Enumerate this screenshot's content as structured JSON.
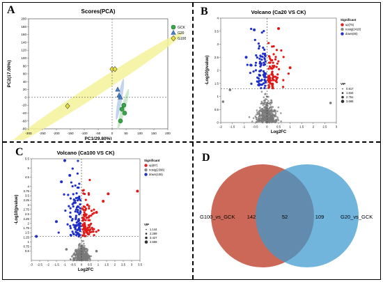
{
  "panels": {
    "A": {
      "letter": "A"
    },
    "B": {
      "letter": "B"
    },
    "C": {
      "letter": "C"
    },
    "D": {
      "letter": "D"
    }
  },
  "chart_data": [
    {
      "id": "pca",
      "type": "scatter",
      "title": "Scores(PCA)",
      "xlabel": "PC1(29.80%)",
      "ylabel": "PC2(17.00%)",
      "xlim": [
        -300,
        200
      ],
      "ylim": [
        -80,
        200
      ],
      "xticks": [
        -300,
        -250,
        -200,
        -150,
        -100,
        -50,
        0,
        50,
        100,
        150,
        200
      ],
      "yticks": [
        -80,
        -60,
        -40,
        -20,
        0,
        20,
        40,
        60,
        80,
        100,
        120,
        140,
        160,
        180,
        200
      ],
      "legend_position": "top-right",
      "series": [
        {
          "name": "GCK",
          "marker": "circle",
          "color": "#3aa64a",
          "points": [
            [
              42,
              -20
            ],
            [
              45,
              -40
            ],
            [
              30,
              -60
            ],
            [
              35,
              -30
            ]
          ]
        },
        {
          "name": "G20",
          "marker": "triangle",
          "color": "#4a7fc1",
          "points": [
            [
              20,
              20
            ],
            [
              25,
              5
            ],
            [
              30,
              0
            ]
          ]
        },
        {
          "name": "G100",
          "marker": "diamond",
          "color": "#e8e03a",
          "points": [
            [
              0,
              72
            ],
            [
              10,
              72
            ],
            [
              -160,
              -22
            ]
          ]
        }
      ],
      "ellipses": [
        {
          "group": "G100",
          "color": "#f5f29a"
        },
        {
          "group": "G20",
          "color": "#b8cdea"
        },
        {
          "group": "GCK",
          "color": "#bfe6c3"
        }
      ]
    },
    {
      "id": "volcano-ca20",
      "type": "scatter",
      "title": "Volcano (Ca20 VS CK)",
      "xlabel": "Log2FC",
      "ylabel": "-Log10(pvalue)",
      "xlim": [
        -2,
        3
      ],
      "ylim": [
        0,
        4
      ],
      "xticks": [
        -2,
        -1.5,
        -1,
        -0.5,
        0,
        0.5,
        1,
        1.5,
        2,
        2.5,
        3
      ],
      "yticks": [
        0,
        0.5,
        1,
        1.5,
        2,
        2.5,
        3,
        3.5,
        4
      ],
      "threshold_y": 1.3,
      "legend": {
        "title": "Significant",
        "entries": [
          {
            "label": "up(75)",
            "color": "#e02020"
          },
          {
            "label": "nosig(2418)",
            "color": "#888888"
          },
          {
            "label": "down(80)",
            "color": "#2030c0"
          }
        ]
      },
      "vip": {
        "title": "VIP",
        "entries": [
          "0.917",
          "1.834",
          "2.751",
          "3.668"
        ]
      },
      "counts": {
        "up": 75,
        "nosig": 2418,
        "down": 80
      }
    },
    {
      "id": "volcano-ca100",
      "type": "scatter",
      "title": "Volcano (Ca100 VS CK)",
      "xlabel": "Log2FC",
      "ylabel": "-Log10(pvalue)",
      "xlim": [
        -3,
        3.5
      ],
      "ylim": [
        0,
        5.5
      ],
      "xticks": [
        -3,
        -2.5,
        -2,
        -1.5,
        -1,
        -0.5,
        0,
        0.5,
        1,
        1.5,
        2,
        2.5,
        3,
        3.5
      ],
      "yticks": [
        0.5,
        0.75,
        1,
        1.25,
        1.5,
        1.75,
        2,
        2.25,
        2.5,
        2.75,
        3,
        3.25,
        3.5,
        3.75,
        4,
        4.5,
        5,
        5.5
      ],
      "threshold_y": 1.3,
      "legend": {
        "title": "Significant",
        "entries": [
          {
            "label": "up(97)",
            "color": "#e02020"
          },
          {
            "label": "nosig(2396)",
            "color": "#888888"
          },
          {
            "label": "down(106)",
            "color": "#2030c0"
          }
        ]
      },
      "vip": {
        "title": "VIP",
        "entries": [
          "1.144",
          "2.289",
          "3.427",
          "4.569"
        ]
      },
      "counts": {
        "up": 97,
        "nosig": 2396,
        "down": 106
      }
    },
    {
      "id": "venn",
      "type": "venn",
      "sets": [
        {
          "label": "G100_vs_GCK",
          "only": "142",
          "color": "#c8604f"
        },
        {
          "label": "G20_vs_GCK",
          "only": "109",
          "color": "#3a98cf"
        }
      ],
      "intersection": "52"
    }
  ]
}
